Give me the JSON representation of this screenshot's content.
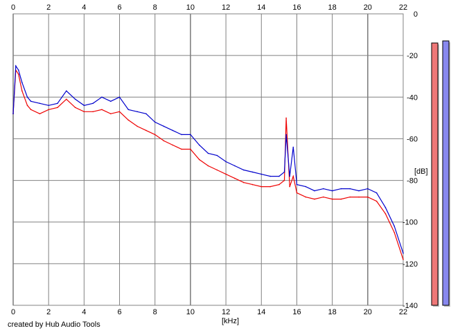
{
  "credit": "created by Hub Audio Tools",
  "chart_data": {
    "type": "line",
    "xlabel": "[kHz]",
    "ylabel": "[dB]",
    "xlim": [
      0,
      22
    ],
    "ylim": [
      -140,
      0
    ],
    "x_ticks": [
      0,
      2,
      4,
      6,
      8,
      10,
      12,
      14,
      16,
      18,
      20,
      22
    ],
    "y_ticks": [
      0,
      -20,
      -40,
      -60,
      -80,
      -100,
      -120,
      -140
    ],
    "grid": true,
    "fill_color": "#c0c0ff",
    "series": [
      {
        "color": "#0000cc",
        "x": [
          0,
          0.15,
          0.3,
          0.5,
          0.8,
          1,
          1.5,
          2,
          2.5,
          3,
          3.5,
          4,
          4.5,
          5,
          5.5,
          6,
          6.5,
          7,
          7.5,
          8,
          8.5,
          9,
          9.5,
          10,
          10.5,
          11,
          11.5,
          12,
          12.5,
          13,
          13.5,
          14,
          14.5,
          15,
          15.3,
          15.4,
          15.6,
          15.8,
          16,
          16.5,
          17,
          17.5,
          18,
          18.5,
          19,
          19.5,
          20,
          20.5,
          21,
          21.5,
          22
        ],
        "y": [
          -48,
          -25,
          -27,
          -33,
          -40,
          -42,
          -43,
          -44,
          -43,
          -37,
          -41,
          -44,
          -43,
          -40,
          -42,
          -40,
          -46,
          -47,
          -48,
          -52,
          -54,
          -56,
          -58,
          -58,
          -63,
          -67,
          -68,
          -71,
          -73,
          -75,
          -76,
          -77,
          -78,
          -78,
          -76,
          -58,
          -78,
          -64,
          -82,
          -83,
          -85,
          -84,
          -85,
          -84,
          -84,
          -85,
          -84,
          -86,
          -93,
          -102,
          -115
        ]
      },
      {
        "color": "#ee0000",
        "x": [
          0,
          0.15,
          0.3,
          0.5,
          0.8,
          1,
          1.5,
          2,
          2.5,
          3,
          3.5,
          4,
          4.5,
          5,
          5.5,
          6,
          6.5,
          7,
          7.5,
          8,
          8.5,
          9,
          9.5,
          10,
          10.5,
          11,
          11.5,
          12,
          12.5,
          13,
          13.5,
          14,
          14.5,
          15,
          15.3,
          15.4,
          15.6,
          15.8,
          16,
          16.5,
          17,
          17.5,
          18,
          18.5,
          19,
          19.5,
          20,
          20.5,
          21,
          21.5,
          22
        ],
        "y": [
          -48,
          -27,
          -29,
          -37,
          -44,
          -46,
          -48,
          -46,
          -45,
          -41,
          -45,
          -47,
          -47,
          -46,
          -48,
          -47,
          -51,
          -54,
          -56,
          -58,
          -61,
          -63,
          -65,
          -65,
          -70,
          -73,
          -75,
          -77,
          -79,
          -81,
          -82,
          -83,
          -83,
          -82,
          -80,
          -50,
          -83,
          -78,
          -86,
          -88,
          -89,
          -88,
          -89,
          -89,
          -88,
          -88,
          -88,
          -90,
          -96,
          -105,
          -118
        ]
      }
    ],
    "level_meters": [
      {
        "color": "#ee7777",
        "value_db": -8
      },
      {
        "color": "#8888ee",
        "value_db": -7
      }
    ]
  }
}
